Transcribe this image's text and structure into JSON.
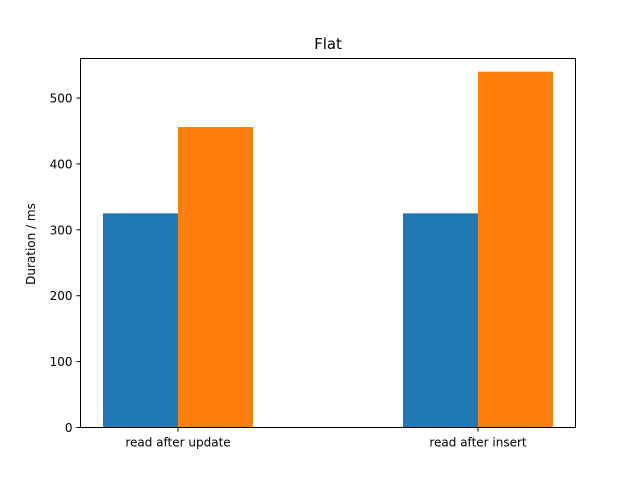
{
  "chart_data": {
    "type": "bar",
    "title": "Flat",
    "xlabel": "",
    "ylabel": "Duration / ms",
    "categories": [
      "read after update",
      "read after insert"
    ],
    "series": [
      {
        "values": [
          325,
          325
        ],
        "color": "#1f77b4"
      },
      {
        "values": [
          456,
          540
        ],
        "color": "#ff7f0e"
      }
    ],
    "ylim": [
      0,
      560
    ],
    "yticks": [
      0,
      100,
      200,
      300,
      400,
      500
    ],
    "grid": false,
    "legend": "none"
  }
}
